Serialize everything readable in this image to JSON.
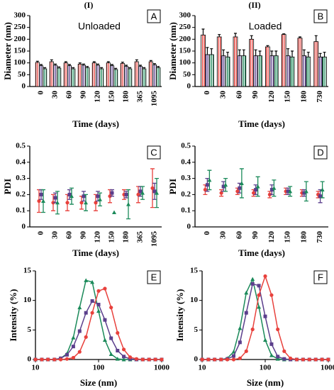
{
  "chart_data": [
    {
      "type": "bar",
      "header": "(I)",
      "annotation": "Unloaded",
      "panel_label": "A",
      "x_label": "Time (days)",
      "y_label": "Diameter (nm)",
      "categories": [
        "0",
        "30",
        "60",
        "90",
        "120",
        "150",
        "180",
        "365",
        "1095"
      ],
      "ylim": [
        0,
        300
      ],
      "yticks": [
        0,
        50,
        100,
        150,
        200,
        250,
        300
      ],
      "series": [
        {
          "color": "#e8413c",
          "values": [
            102,
            105,
            100,
            95,
            100,
            100,
            98,
            105,
            105
          ],
          "errors": [
            5,
            8,
            5,
            5,
            5,
            5,
            5,
            8,
            5
          ]
        },
        {
          "color": "#5b3f8c",
          "values": [
            88,
            90,
            88,
            90,
            90,
            88,
            85,
            85,
            92
          ],
          "errors": [
            5,
            5,
            5,
            5,
            5,
            5,
            5,
            5,
            5
          ]
        },
        {
          "color": "#1b8a5a",
          "values": [
            75,
            78,
            75,
            80,
            75,
            72,
            75,
            75,
            80
          ],
          "errors": [
            5,
            5,
            5,
            5,
            5,
            5,
            5,
            5,
            5
          ]
        }
      ]
    },
    {
      "type": "bar",
      "header": "(II)",
      "annotation": "Loaded",
      "panel_label": "B",
      "x_label": "Time (days)",
      "y_label": "Diameter (nm)",
      "categories": [
        "0",
        "30",
        "60",
        "90",
        "120",
        "150",
        "180",
        "730"
      ],
      "ylim": [
        0,
        300
      ],
      "yticks": [
        0,
        50,
        100,
        150,
        200,
        250,
        300
      ],
      "series": [
        {
          "color": "#e8413c",
          "values": [
            218,
            210,
            210,
            200,
            168,
            220,
            205,
            190
          ],
          "errors": [
            25,
            10,
            15,
            15,
            5,
            3,
            5,
            25
          ]
        },
        {
          "color": "#5b3f8c",
          "values": [
            135,
            130,
            130,
            130,
            130,
            130,
            130,
            125
          ],
          "errors": [
            30,
            25,
            25,
            25,
            20,
            30,
            25,
            15
          ]
        },
        {
          "color": "#1b8a5a",
          "values": [
            135,
            125,
            130,
            130,
            130,
            125,
            125,
            125
          ],
          "errors": [
            25,
            20,
            25,
            20,
            20,
            25,
            20,
            20
          ]
        }
      ]
    },
    {
      "type": "scatter",
      "panel_label": "C",
      "x_label": "Time (days)",
      "y_label": "PDI",
      "categories": [
        "0",
        "30",
        "60",
        "90",
        "120",
        "150",
        "180",
        "365",
        "1095"
      ],
      "ylim": [
        0,
        0.5
      ],
      "yticks": [
        0,
        0.1,
        0.2,
        0.3,
        0.4,
        0.5
      ],
      "series": [
        {
          "color": "#e8413c",
          "marker": "circle",
          "values": [
            0.16,
            0.15,
            0.15,
            0.15,
            0.15,
            0.19,
            0.2,
            0.2,
            0.24
          ],
          "errors": [
            0.07,
            0.05,
            0.05,
            0.04,
            0.05,
            0.04,
            0.03,
            0.05,
            0.12
          ]
        },
        {
          "color": "#5b3f8c",
          "marker": "square",
          "values": [
            0.2,
            0.18,
            0.2,
            0.19,
            0.19,
            0.21,
            0.2,
            0.22,
            0.22
          ],
          "errors": [
            0.03,
            0.03,
            0.03,
            0.03,
            0.03,
            0.02,
            0.02,
            0.03,
            0.05
          ]
        },
        {
          "color": "#1b8a5a",
          "marker": "triangle",
          "values": [
            0.16,
            0.15,
            0.19,
            0.15,
            0.17,
            0.09,
            0.14,
            0.21,
            0.21
          ],
          "errors": [
            0.07,
            0.07,
            0.05,
            0.05,
            0.04,
            0,
            0.09,
            0.04,
            0.09
          ]
        }
      ]
    },
    {
      "type": "scatter",
      "panel_label": "D",
      "x_label": "Time (days)",
      "y_label": "PDI",
      "categories": [
        "0",
        "30",
        "60",
        "90",
        "120",
        "150",
        "180",
        "730"
      ],
      "ylim": [
        0,
        0.5
      ],
      "yticks": [
        0,
        0.1,
        0.2,
        0.3,
        0.4,
        0.5
      ],
      "series": [
        {
          "color": "#e8413c",
          "marker": "circle",
          "values": [
            0.23,
            0.21,
            0.22,
            0.21,
            0.2,
            0.22,
            0.21,
            0.2
          ],
          "errors": [
            0.03,
            0.02,
            0.02,
            0.02,
            0.02,
            0.02,
            0.02,
            0.02
          ]
        },
        {
          "color": "#5b3f8c",
          "marker": "square",
          "values": [
            0.26,
            0.25,
            0.24,
            0.23,
            0.23,
            0.22,
            0.21,
            0.19
          ],
          "errors": [
            0.04,
            0.03,
            0.03,
            0.03,
            0.03,
            0.02,
            0.02,
            0.04
          ]
        },
        {
          "color": "#1b8a5a",
          "marker": "triangle",
          "values": [
            0.29,
            0.26,
            0.27,
            0.25,
            0.24,
            0.22,
            0.22,
            0.23
          ],
          "errors": [
            0.06,
            0.04,
            0.09,
            0.06,
            0.05,
            0.03,
            0.06,
            0.05
          ]
        }
      ]
    },
    {
      "type": "line",
      "panel_label": "E",
      "x_label": "Size (nm)",
      "y_label": "Intensity (%)",
      "xscale": "log",
      "x": [
        10,
        12.6,
        15.8,
        20,
        25.1,
        31.6,
        39.8,
        50.1,
        63.1,
        79.4,
        100,
        126,
        158,
        200,
        251,
        316,
        398,
        501,
        631,
        794,
        1000
      ],
      "xlim": [
        10,
        1000
      ],
      "xticks": [
        10,
        100,
        1000
      ],
      "ylim": [
        0,
        15
      ],
      "yticks": [
        0,
        5,
        10,
        15
      ],
      "series": [
        {
          "color": "#1b8a5a",
          "marker": "triangle",
          "values": [
            0,
            0,
            0,
            0,
            0.2,
            1.0,
            3.7,
            8.8,
            13.4,
            13.1,
            8.2,
            3.3,
            0.9,
            0.1,
            0,
            0,
            0,
            0,
            0,
            0,
            0
          ]
        },
        {
          "color": "#5b3f8c",
          "marker": "square",
          "values": [
            0,
            0,
            0,
            0,
            0.2,
            0.8,
            2.2,
            4.8,
            7.9,
            9.9,
            9.3,
            6.7,
            3.6,
            1.5,
            0.5,
            0.1,
            0,
            0,
            0,
            0,
            0
          ]
        },
        {
          "color": "#e8413c",
          "marker": "circle",
          "values": [
            0,
            0,
            0,
            0,
            0,
            0.1,
            0.3,
            1.3,
            3.8,
            7.9,
            11.6,
            12.0,
            8.8,
            4.5,
            1.7,
            0.4,
            0.1,
            0,
            0,
            0,
            0
          ]
        }
      ]
    },
    {
      "type": "line",
      "panel_label": "F",
      "x_label": "Size (nm)",
      "y_label": "Intensity (%)",
      "xscale": "log",
      "x": [
        10,
        12.6,
        15.8,
        20,
        25.1,
        31.6,
        39.8,
        50.1,
        63.1,
        79.4,
        100,
        126,
        158,
        200,
        251,
        316,
        398,
        501,
        631,
        794,
        1000
      ],
      "xlim": [
        10,
        1000
      ],
      "xticks": [
        10,
        100,
        1000
      ],
      "ylim": [
        0,
        15
      ],
      "yticks": [
        0,
        5,
        10,
        15
      ],
      "series": [
        {
          "color": "#1b8a5a",
          "marker": "triangle",
          "values": [
            0,
            0,
            0,
            0,
            0.2,
            1.3,
            5.3,
            11.3,
            13.6,
            8.9,
            3.3,
            0.7,
            0.1,
            0,
            0,
            0,
            0,
            0,
            0,
            0,
            0
          ]
        },
        {
          "color": "#5b3f8c",
          "marker": "square",
          "values": [
            0,
            0,
            0,
            0,
            0.1,
            0.6,
            2.9,
            7.9,
            12.8,
            12.5,
            7.3,
            2.6,
            0.5,
            0.1,
            0,
            0,
            0,
            0,
            0,
            0,
            0
          ]
        },
        {
          "color": "#e8413c",
          "marker": "circle",
          "values": [
            0,
            0,
            0,
            0,
            0,
            0,
            0.2,
            1.4,
            5.1,
            10.9,
            14.1,
            10.9,
            5.1,
            1.4,
            0.2,
            0,
            0,
            0,
            0,
            0,
            0
          ]
        }
      ]
    }
  ]
}
